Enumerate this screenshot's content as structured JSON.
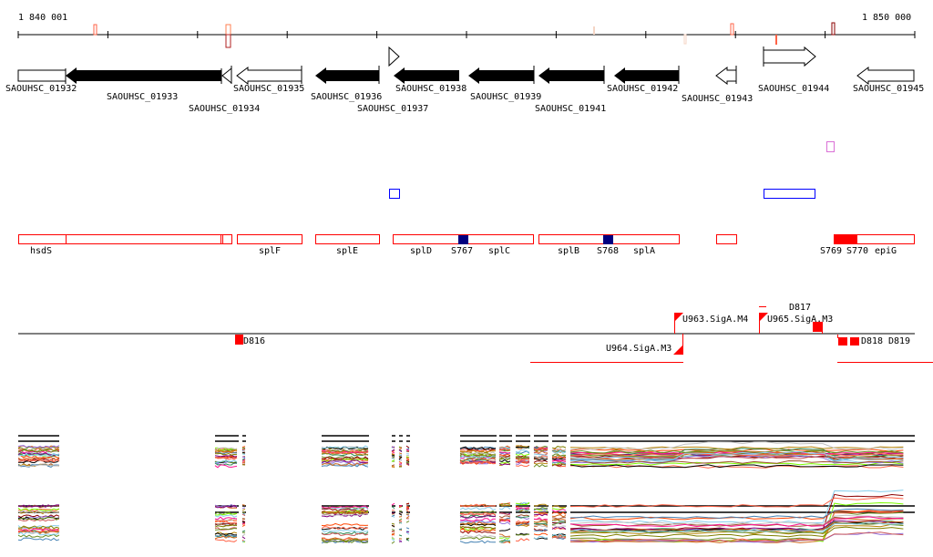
{
  "ruler": {
    "start_label": "1 840 001",
    "end_label": "1 850 000"
  },
  "genes": [
    {
      "name": "SAOUHSC_01932",
      "strand": "+",
      "style": "open"
    },
    {
      "name": "SAOUHSC_01933",
      "strand": "-",
      "style": "filled"
    },
    {
      "name": "SAOUHSC_01934",
      "strand": "-",
      "style": "open"
    },
    {
      "name": "SAOUHSC_01935",
      "strand": "-",
      "style": "open"
    },
    {
      "name": "SAOUHSC_01936",
      "strand": "-",
      "style": "filled"
    },
    {
      "name": "SAOUHSC_01937",
      "strand": "+",
      "style": "open"
    },
    {
      "name": "SAOUHSC_01938",
      "strand": "-",
      "style": "filled"
    },
    {
      "name": "SAOUHSC_01939",
      "strand": "-",
      "style": "filled"
    },
    {
      "name": "SAOUHSC_01941",
      "strand": "-",
      "style": "filled"
    },
    {
      "name": "SAOUHSC_01942",
      "strand": "-",
      "style": "filled"
    },
    {
      "name": "SAOUHSC_01943",
      "strand": "-",
      "style": "open"
    },
    {
      "name": "SAOUHSC_01944",
      "strand": "+",
      "style": "open"
    },
    {
      "name": "SAOUHSC_01945",
      "strand": "-",
      "style": "open"
    }
  ],
  "operon_labels": [
    "hsdS",
    "splF",
    "splE",
    "splD",
    "S767",
    "splC",
    "splB",
    "S768",
    "splA",
    "S769",
    "S770",
    "epiG"
  ],
  "regulatory": {
    "u963": "U963.SigA.M4",
    "u965": "U965.SigA.M3",
    "u964": "U964.SigA.M3",
    "d816": "D816",
    "d817": "D817",
    "d818": "D818",
    "d819": "D819"
  },
  "colors": {
    "feature_red": "#ff0000",
    "sRNA_blue": "#000080",
    "palette": [
      "#d2691e",
      "#6b8e23",
      "#ff6347",
      "#87ceeb",
      "#8b0000",
      "#7cfc00",
      "#9370db",
      "#a0522d",
      "#ff4500",
      "#2e8b57",
      "#b8860b",
      "#800080",
      "#4682b4",
      "#cd5c5c",
      "#808000",
      "#c0c0c0",
      "#000000",
      "#ff1493"
    ]
  }
}
